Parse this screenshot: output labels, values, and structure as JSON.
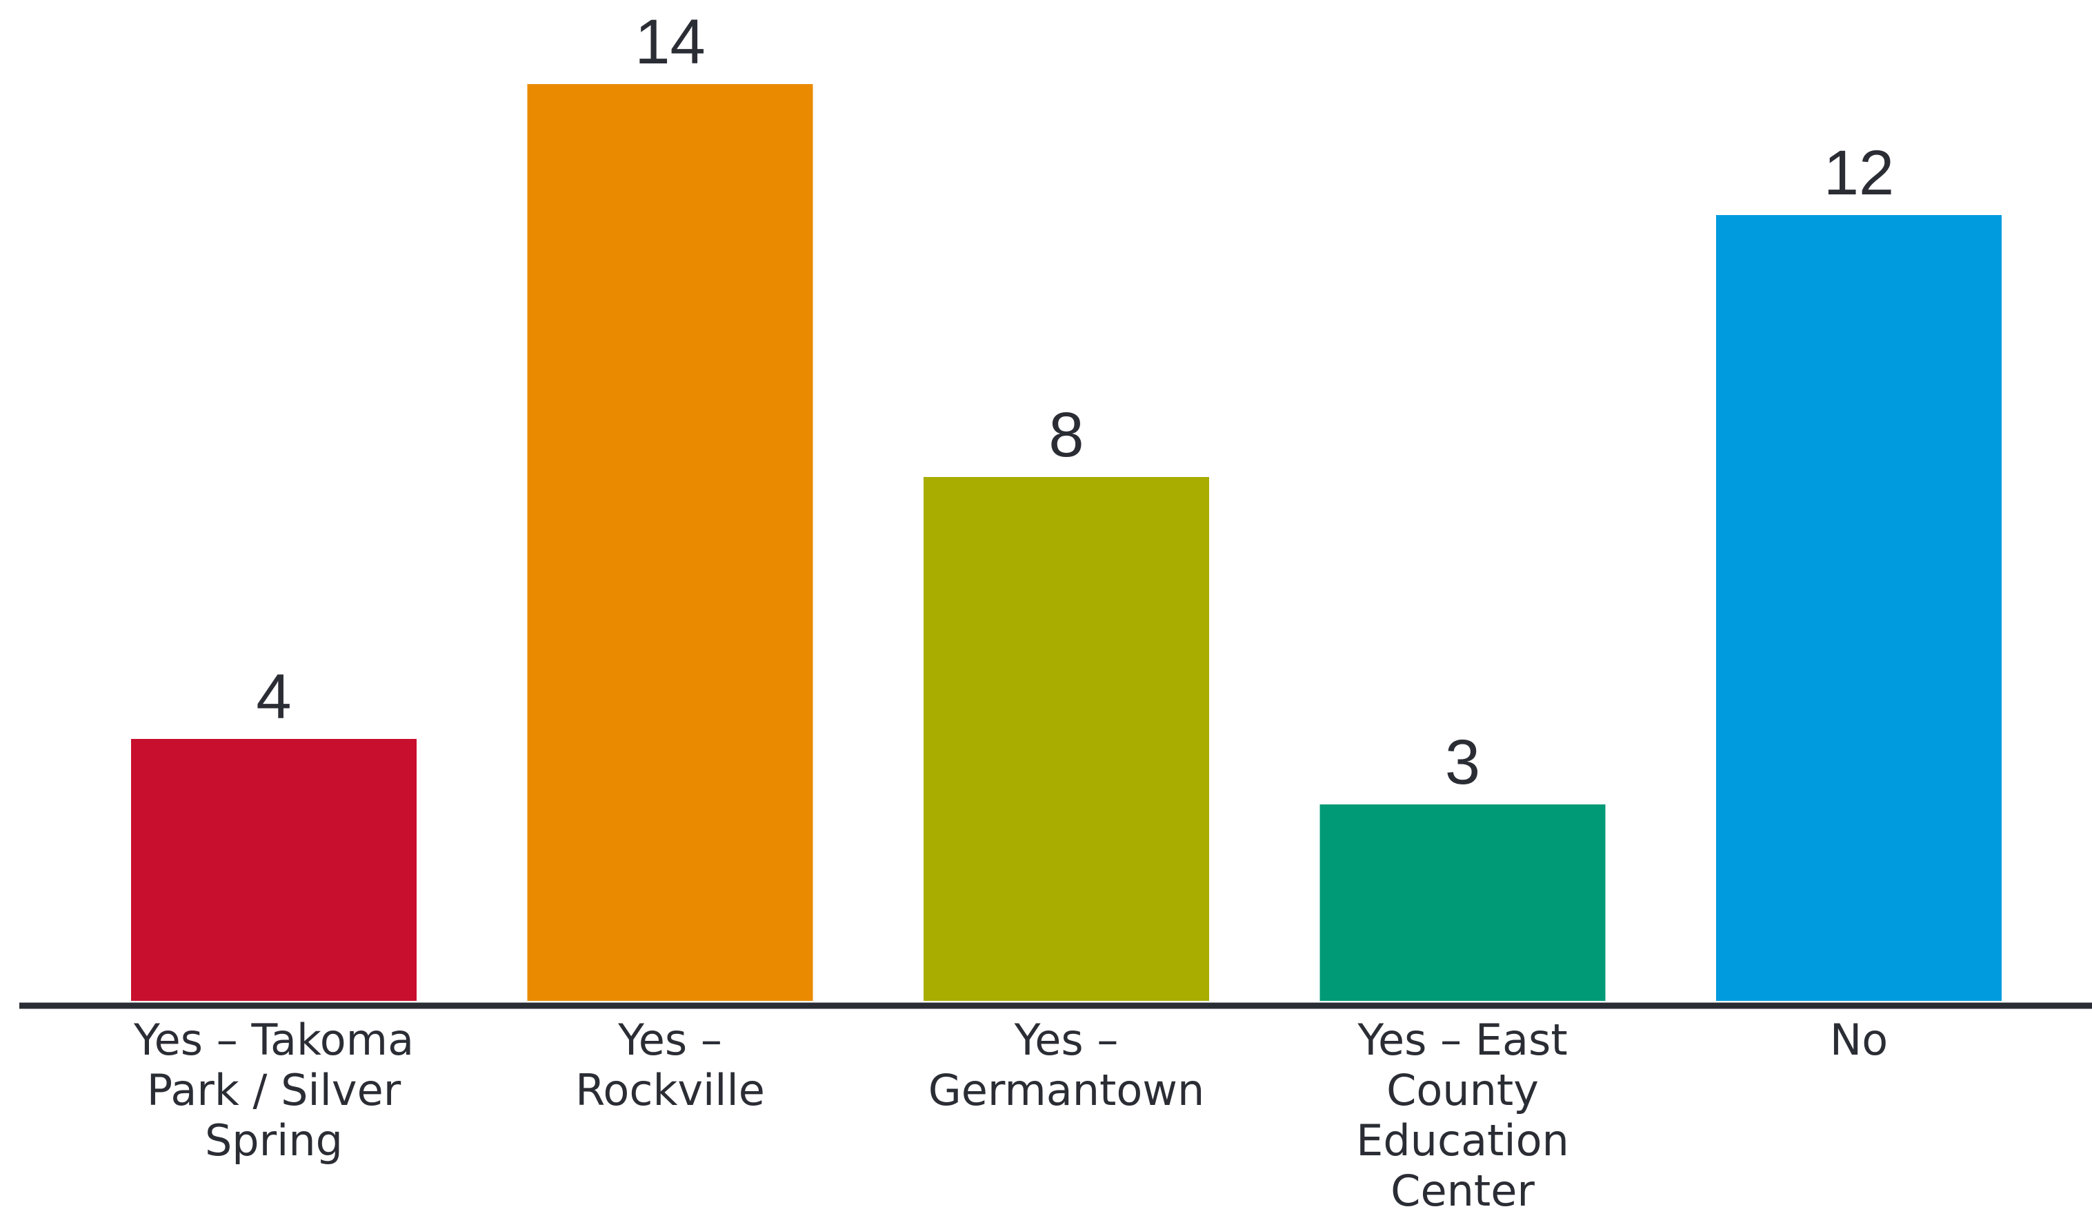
{
  "chart_data": {
    "type": "bar",
    "title": "",
    "xlabel": "",
    "ylabel": "",
    "ylim": [
      0,
      14
    ],
    "grid": false,
    "legend": "none",
    "bar_colors": [
      "#c8102e",
      "#ea8a00",
      "#a8ad00",
      "#009a77",
      "#009bde"
    ],
    "axis_color": "#2b2d35",
    "categories": [
      [
        "Yes – Takoma",
        "Park / Silver",
        "Spring"
      ],
      [
        "Yes –",
        "Rockville"
      ],
      [
        "Yes –",
        "Germantown"
      ],
      [
        "Yes – East",
        "County",
        "Education",
        "Center"
      ],
      [
        "No"
      ]
    ],
    "values": [
      4,
      14,
      8,
      3,
      12
    ],
    "data_labels": [
      "4",
      "14",
      "8",
      "3",
      "12"
    ]
  }
}
